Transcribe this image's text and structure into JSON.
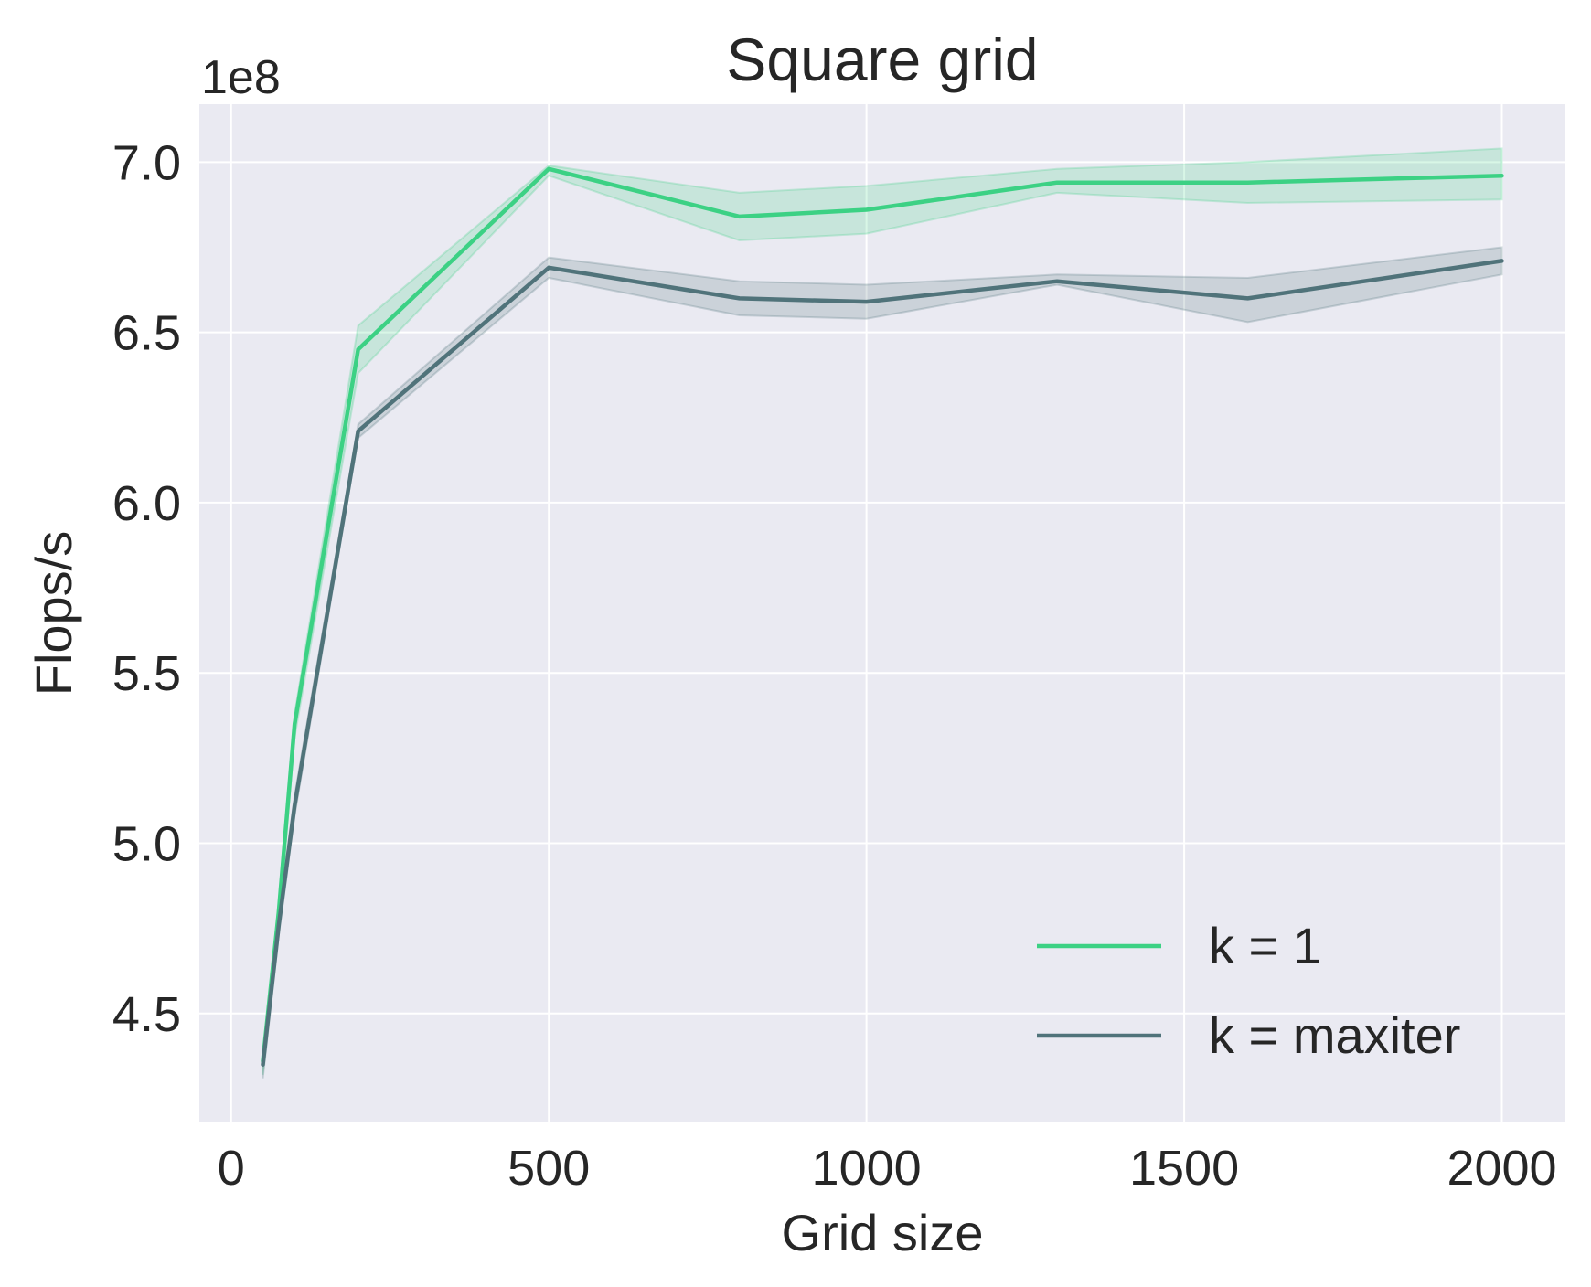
{
  "chart_data": {
    "type": "line",
    "title": "Square grid",
    "xlabel": "Grid size",
    "ylabel": "Flops/s",
    "y_offset_label": "1e8",
    "x_ticks": [
      0,
      500,
      1000,
      1500,
      2000
    ],
    "x_tick_labels": [
      "0",
      "500",
      "1000",
      "1500",
      "2000"
    ],
    "y_ticks": [
      4.5,
      5.0,
      5.5,
      6.0,
      6.5,
      7.0
    ],
    "y_tick_labels": [
      "4.5",
      "5.0",
      "5.5",
      "6.0",
      "6.5",
      "7.0"
    ],
    "xlim": [
      -50,
      2100
    ],
    "ylim": [
      4.18,
      7.17
    ],
    "grid": true,
    "legend_position": "lower-right",
    "x": [
      50,
      75,
      100,
      200,
      500,
      800,
      1000,
      1300,
      1600,
      2000
    ],
    "series": [
      {
        "name": "k = 1",
        "color": "#3cd184",
        "values": [
          4.36,
          4.8,
          5.35,
          6.45,
          6.98,
          6.84,
          6.86,
          6.94,
          6.94,
          6.96
        ],
        "lower": [
          4.32,
          4.76,
          5.31,
          6.38,
          6.96,
          6.77,
          6.79,
          6.91,
          6.88,
          6.89
        ],
        "upper": [
          4.38,
          4.83,
          5.38,
          6.52,
          6.99,
          6.91,
          6.93,
          6.98,
          7.0,
          7.04
        ]
      },
      {
        "name": "k = maxiter",
        "color": "#50737a",
        "values": [
          4.35,
          4.76,
          5.11,
          6.21,
          6.69,
          6.6,
          6.59,
          6.65,
          6.6,
          6.71
        ],
        "lower": [
          4.31,
          4.73,
          5.08,
          6.19,
          6.66,
          6.55,
          6.54,
          6.64,
          6.53,
          6.67
        ],
        "upper": [
          4.37,
          4.79,
          5.14,
          6.23,
          6.72,
          6.65,
          6.64,
          6.67,
          6.66,
          6.75
        ]
      }
    ]
  }
}
